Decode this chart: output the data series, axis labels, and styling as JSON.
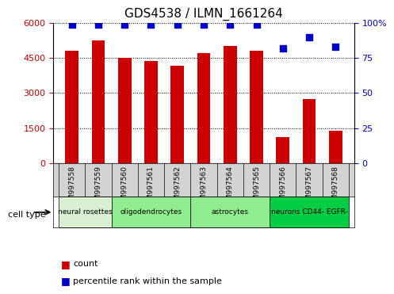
{
  "title": "GDS4538 / ILMN_1661264",
  "samples": [
    "GSM997558",
    "GSM997559",
    "GSM997560",
    "GSM997561",
    "GSM997562",
    "GSM997563",
    "GSM997564",
    "GSM997565",
    "GSM997566",
    "GSM997567",
    "GSM997568"
  ],
  "counts": [
    4800,
    5250,
    4500,
    4350,
    4150,
    4700,
    5000,
    4800,
    1100,
    2750,
    1400
  ],
  "percentiles": [
    99,
    99,
    99,
    99,
    99,
    99,
    99,
    99,
    82,
    90,
    83
  ],
  "cell_types": [
    {
      "label": "neural rosettes",
      "start": 0,
      "end": 2,
      "color": "#d9f0d3"
    },
    {
      "label": "oligodendrocytes",
      "start": 2,
      "end": 5,
      "color": "#90ee90"
    },
    {
      "label": "astrocytes",
      "start": 5,
      "end": 8,
      "color": "#90ee90"
    },
    {
      "label": "neurons CD44- EGFR-",
      "start": 8,
      "end": 11,
      "color": "#00cc44"
    }
  ],
  "ylim_left": [
    0,
    6000
  ],
  "ylim_right": [
    0,
    100
  ],
  "yticks_left": [
    0,
    1500,
    3000,
    4500,
    6000
  ],
  "yticks_right": [
    0,
    25,
    50,
    75,
    100
  ],
  "bar_color": "#cc0000",
  "dot_color": "#0000cc",
  "bar_width": 0.5,
  "grid_color": "black",
  "bg_color": "#ffffff",
  "tick_label_area_bg": "#d3d3d3",
  "legend_count_color": "#cc0000",
  "legend_pct_color": "#0000cc"
}
